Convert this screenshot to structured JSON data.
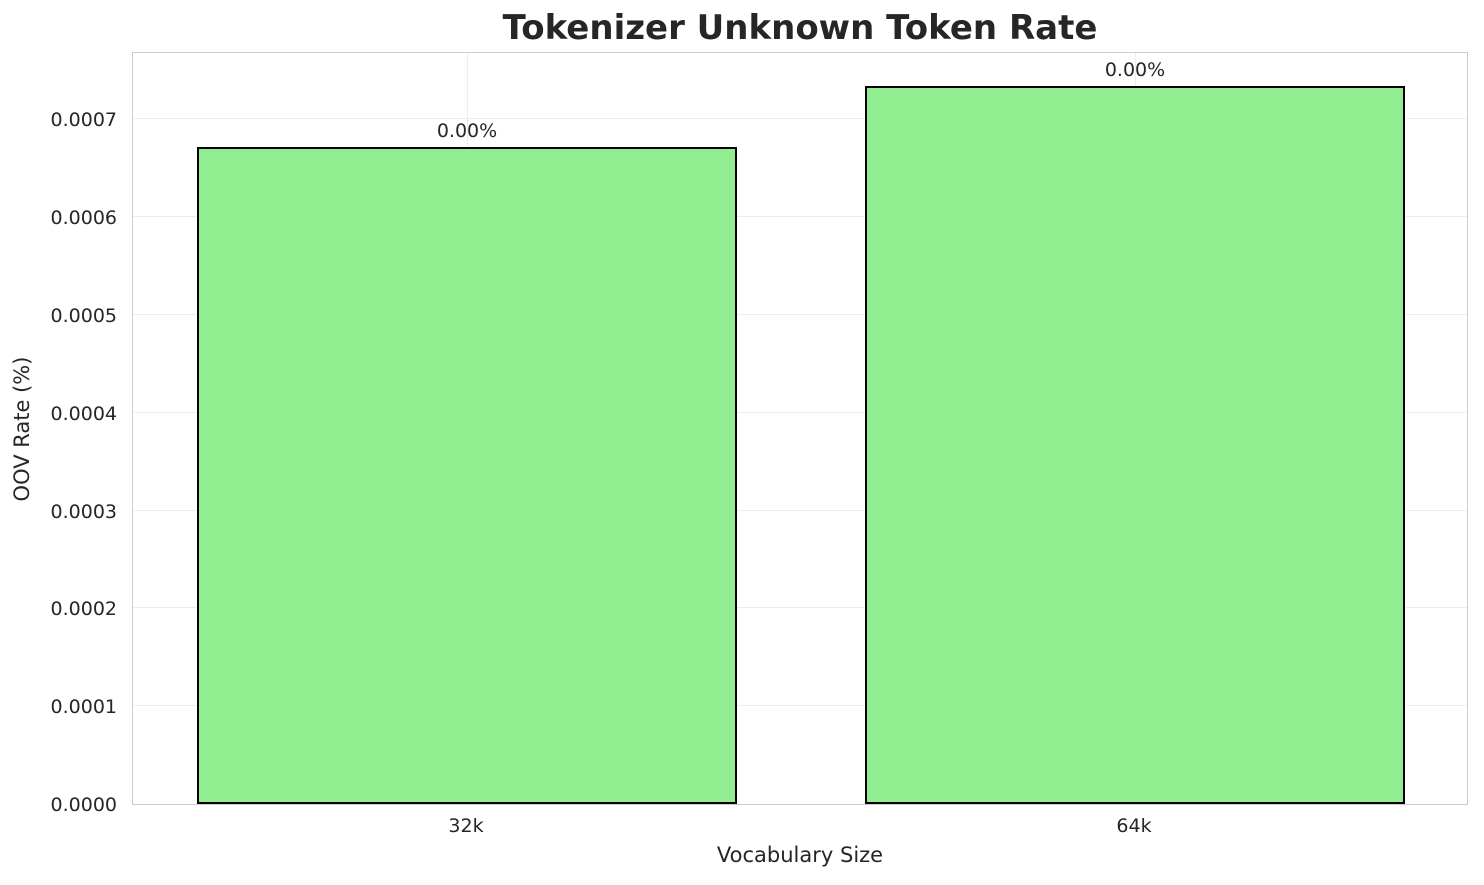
{
  "chart_data": {
    "type": "bar",
    "title": "Tokenizer Unknown Token Rate",
    "xlabel": "Vocabulary Size",
    "ylabel": "OOV Rate (%)",
    "categories": [
      "32k",
      "64k"
    ],
    "values": [
      0.000672,
      0.000734
    ],
    "bar_labels": [
      "0.00%",
      "0.00%"
    ],
    "ylim": [
      0,
      0.00077
    ],
    "yticks": [
      0,
      0.0001,
      0.0002,
      0.0003,
      0.0004,
      0.0005,
      0.0006,
      0.0007
    ],
    "ytick_labels": [
      "0.0000",
      "0.0001",
      "0.0002",
      "0.0003",
      "0.0004",
      "0.0005",
      "0.0006",
      "0.0007"
    ],
    "grid": true,
    "grid_axis": "both",
    "legend": "none",
    "bar_width_fraction": 0.808,
    "colors": {
      "bar_fill": "#90ee90",
      "bar_edge": "#000000",
      "text": "#262626",
      "gridline": "#ededed",
      "spine": "#cccccc",
      "background": "#ffffff"
    }
  }
}
